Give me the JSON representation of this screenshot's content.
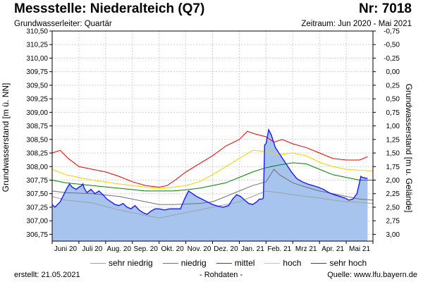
{
  "header": {
    "title": "Messstelle: Niederalteich (Q7)",
    "number": "Nr: 7018",
    "subtitle": "Grundwasserleiter: Quartär",
    "period": "Zeitraum: Jun 2020 - Mai 2021"
  },
  "chart_data": {
    "type": "area",
    "ylabel": "Grundwasserstand [m ü. NN]",
    "ylabel_right": "Grundwasserstand [m u. Gelände]",
    "ylim": [
      306.625,
      310.5
    ],
    "yticks": [
      {
        "value": 310.5,
        "label": "310,50"
      },
      {
        "value": 310.25,
        "label": "310,25"
      },
      {
        "value": 310.0,
        "label": "310,00"
      },
      {
        "value": 309.75,
        "label": "309,75"
      },
      {
        "value": 309.5,
        "label": "309,50"
      },
      {
        "value": 309.25,
        "label": "309,25"
      },
      {
        "value": 309.0,
        "label": "309,00"
      },
      {
        "value": 308.75,
        "label": "308,75"
      },
      {
        "value": 308.5,
        "label": "308,50"
      },
      {
        "value": 308.25,
        "label": "308,25"
      },
      {
        "value": 308.0,
        "label": "308,00"
      },
      {
        "value": 307.75,
        "label": "307,75"
      },
      {
        "value": 307.5,
        "label": "307,50"
      },
      {
        "value": 307.25,
        "label": "307,25"
      },
      {
        "value": 307.0,
        "label": "307,00"
      },
      {
        "value": 306.75,
        "label": "306,75"
      }
    ],
    "yticks_right": [
      {
        "value": 310.5,
        "label": "-0,75"
      },
      {
        "value": 310.25,
        "label": "-0,50"
      },
      {
        "value": 310.0,
        "label": "-0,25"
      },
      {
        "value": 309.75,
        "label": "0,00"
      },
      {
        "value": 309.5,
        "label": "0,25"
      },
      {
        "value": 309.25,
        "label": "0,50"
      },
      {
        "value": 309.0,
        "label": "0,75"
      },
      {
        "value": 308.75,
        "label": "1,00"
      },
      {
        "value": 308.5,
        "label": "1,25"
      },
      {
        "value": 308.25,
        "label": "1,50"
      },
      {
        "value": 308.0,
        "label": "1,75"
      },
      {
        "value": 307.75,
        "label": "2,00"
      },
      {
        "value": 307.5,
        "label": "2,25"
      },
      {
        "value": 307.25,
        "label": "2,50"
      },
      {
        "value": 307.0,
        "label": "2,75"
      },
      {
        "value": 306.75,
        "label": "3,00"
      }
    ],
    "xlim": [
      0,
      12
    ],
    "xticks": [
      {
        "value": 0.5,
        "label": "Juni 20"
      },
      {
        "value": 1.5,
        "label": "Juli 20"
      },
      {
        "value": 2.5,
        "label": "Aug. 20"
      },
      {
        "value": 3.5,
        "label": "Sep. 20"
      },
      {
        "value": 4.5,
        "label": "Okt. 20"
      },
      {
        "value": 5.5,
        "label": "Nov. 20"
      },
      {
        "value": 6.5,
        "label": "Dez. 20"
      },
      {
        "value": 7.5,
        "label": "Jan. 21"
      },
      {
        "value": 8.5,
        "label": "Feb. 21"
      },
      {
        "value": 9.5,
        "label": "Mrz 21"
      },
      {
        "value": 10.5,
        "label": "Apr. 21"
      },
      {
        "value": 11.5,
        "label": "Mai 21"
      }
    ],
    "series": [
      {
        "name": "Rohdaten",
        "kind": "area",
        "color": "#1a1aff",
        "fill": "#a6c4ee",
        "x": [
          0,
          0.1,
          0.2,
          0.3,
          0.45,
          0.55,
          0.65,
          0.75,
          0.9,
          1.0,
          1.1,
          1.15,
          1.2,
          1.3,
          1.45,
          1.6,
          1.75,
          1.9,
          2.05,
          2.2,
          2.35,
          2.5,
          2.65,
          2.8,
          2.95,
          3.1,
          3.25,
          3.4,
          3.55,
          3.7,
          3.85,
          4.0,
          4.2,
          4.4,
          4.6,
          4.8,
          4.95,
          5.1,
          5.25,
          5.4,
          5.6,
          5.8,
          6.0,
          6.2,
          6.4,
          6.6,
          6.75,
          6.9,
          7.05,
          7.2,
          7.35,
          7.5,
          7.65,
          7.75,
          7.85,
          7.9,
          7.95,
          8.0,
          8.1,
          8.2,
          8.35,
          8.55,
          8.75,
          8.95,
          9.15,
          9.35,
          9.55,
          9.75,
          9.95,
          10.15,
          10.35,
          10.55,
          10.75,
          10.95,
          11.1,
          11.25,
          11.4,
          11.55,
          11.6,
          11.8
        ],
        "y": [
          307.3,
          307.25,
          307.3,
          307.35,
          307.5,
          307.6,
          307.68,
          307.62,
          307.58,
          307.62,
          307.65,
          307.68,
          307.6,
          307.52,
          307.58,
          307.5,
          307.55,
          307.48,
          307.4,
          307.35,
          307.3,
          307.28,
          307.32,
          307.25,
          307.22,
          307.28,
          307.2,
          307.15,
          307.12,
          307.18,
          307.22,
          307.22,
          307.2,
          307.22,
          307.22,
          307.22,
          307.4,
          307.55,
          307.5,
          307.45,
          307.4,
          307.35,
          307.3,
          307.27,
          307.25,
          307.28,
          307.4,
          307.48,
          307.45,
          307.38,
          307.32,
          307.3,
          307.35,
          307.4,
          307.4,
          307.42,
          308.4,
          308.42,
          308.68,
          308.58,
          308.35,
          308.2,
          308.05,
          307.9,
          307.78,
          307.72,
          307.68,
          307.65,
          307.62,
          307.58,
          307.52,
          307.48,
          307.45,
          307.42,
          307.38,
          307.4,
          307.5,
          307.82,
          307.8,
          307.78
        ]
      },
      {
        "name": "sehr niedrig",
        "kind": "line",
        "color": "#a0a0a0",
        "x": [
          0,
          0.5,
          1.5,
          2.5,
          3.5,
          4.0,
          4.5,
          5.5,
          6.5,
          7.0,
          7.5,
          8.0,
          8.5,
          9.0,
          9.5,
          10.0,
          10.5,
          11.0,
          11.5,
          12.0
        ],
        "y": [
          307.45,
          307.38,
          307.33,
          307.2,
          307.1,
          307.05,
          307.1,
          307.2,
          307.3,
          307.35,
          307.45,
          307.55,
          307.52,
          307.48,
          307.45,
          307.42,
          307.38,
          307.35,
          307.34,
          307.32
        ]
      },
      {
        "name": "niedrig",
        "kind": "line",
        "color": "#707070",
        "x": [
          0,
          0.5,
          1.5,
          2.5,
          3.5,
          4.0,
          4.5,
          5.5,
          6.0,
          6.5,
          7.0,
          7.5,
          8.0,
          8.3,
          8.5,
          9.0,
          9.5,
          10.0,
          10.5,
          11.0,
          11.5,
          12.0
        ],
        "y": [
          307.55,
          307.52,
          307.5,
          307.45,
          307.35,
          307.3,
          307.3,
          307.32,
          307.35,
          307.45,
          307.55,
          307.65,
          307.72,
          307.95,
          307.85,
          307.7,
          307.62,
          307.55,
          307.5,
          307.45,
          307.4,
          307.38
        ]
      },
      {
        "name": "mittel",
        "kind": "line",
        "color": "#008000",
        "x": [
          0,
          0.5,
          1.5,
          2.5,
          3.5,
          4.0,
          4.5,
          5.0,
          5.5,
          6.0,
          6.5,
          7.0,
          7.5,
          8.0,
          8.5,
          9.0,
          9.5,
          10.0,
          10.5,
          11.0,
          11.5,
          12.0
        ],
        "y": [
          307.75,
          307.7,
          307.65,
          307.6,
          307.55,
          307.55,
          307.55,
          307.57,
          307.6,
          307.65,
          307.7,
          307.8,
          307.9,
          307.98,
          308.03,
          308.07,
          308.05,
          307.95,
          307.85,
          307.8,
          307.75,
          307.75
        ]
      },
      {
        "name": "hoch",
        "kind": "line",
        "color": "#f5d000",
        "x": [
          0,
          0.5,
          1.5,
          2.5,
          3.5,
          4.0,
          4.5,
          5.0,
          5.5,
          6.0,
          6.5,
          7.0,
          7.5,
          8.0,
          8.5,
          9.0,
          9.5,
          10.0,
          10.5,
          11.0,
          11.5,
          12.0
        ],
        "y": [
          307.95,
          307.85,
          307.75,
          307.68,
          307.62,
          307.6,
          307.62,
          307.65,
          307.72,
          307.85,
          308.0,
          308.15,
          308.3,
          308.28,
          308.22,
          308.25,
          308.2,
          308.08,
          308.0,
          307.95,
          307.93,
          307.92
        ]
      },
      {
        "name": "sehr hoch",
        "kind": "line",
        "color": "#e00000",
        "x": [
          0,
          0.3,
          0.6,
          1.0,
          1.5,
          2.0,
          2.5,
          3.0,
          3.5,
          4.0,
          4.3,
          4.6,
          5.0,
          5.5,
          6.0,
          6.5,
          7.0,
          7.3,
          7.6,
          8.0,
          8.3,
          8.6,
          9.0,
          9.5,
          10.0,
          10.5,
          11.0,
          11.5,
          11.8
        ],
        "y": [
          308.25,
          308.3,
          308.15,
          308.0,
          307.95,
          307.9,
          307.82,
          307.72,
          307.65,
          307.62,
          307.65,
          307.75,
          307.9,
          308.05,
          308.2,
          308.38,
          308.5,
          308.65,
          308.6,
          308.55,
          308.45,
          308.5,
          308.42,
          308.35,
          308.25,
          308.15,
          308.12,
          308.12,
          308.18
        ]
      }
    ]
  },
  "legend": [
    "sehr niedrig",
    "niedrig",
    "mittel",
    "hoch",
    "sehr hoch"
  ],
  "colors": {
    "sehr_niedrig": "#a0a0a0",
    "niedrig": "#707070",
    "mittel": "#008000",
    "hoch": "#f5d000",
    "sehr_hoch": "#e00000",
    "raw_line": "#1a1aff",
    "raw_fill": "#a6c4ee"
  },
  "footer": {
    "created": "erstellt:  21.05.2021",
    "raw": "- Rohdaten -",
    "source": "Quelle:  www.lfu.bayern.de"
  }
}
